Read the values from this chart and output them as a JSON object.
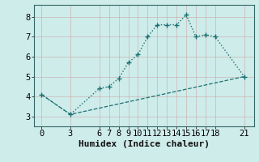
{
  "xlabel": "Humidex (Indice chaleur)",
  "bg_color": "#ceecea",
  "grid_color": "#aed8d4",
  "line_color": "#1a7070",
  "line1_x": [
    0,
    3,
    6,
    7,
    8,
    9,
    10,
    11,
    12,
    13,
    14,
    15,
    16,
    17,
    18,
    21
  ],
  "line1_y": [
    4.1,
    3.1,
    4.4,
    4.5,
    4.9,
    5.7,
    6.1,
    7.0,
    7.6,
    7.6,
    7.6,
    8.1,
    7.0,
    7.1,
    7.0,
    5.0
  ],
  "line2_x": [
    0,
    3,
    21
  ],
  "line2_y": [
    4.1,
    3.1,
    5.0
  ],
  "xticks": [
    0,
    3,
    6,
    7,
    8,
    9,
    10,
    11,
    12,
    13,
    14,
    15,
    16,
    17,
    18,
    21
  ],
  "yticks": [
    3,
    4,
    5,
    6,
    7,
    8
  ],
  "xlim": [
    -0.8,
    22.0
  ],
  "ylim": [
    2.5,
    8.6
  ],
  "tick_fontsize": 7.5,
  "xlabel_fontsize": 8.0
}
